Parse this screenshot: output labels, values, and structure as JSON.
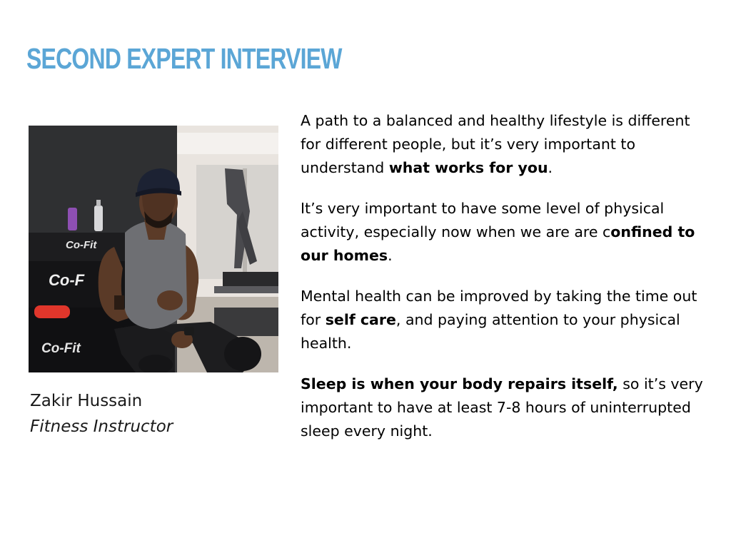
{
  "slide": {
    "title": "SECOND EXPERT INTERVIEW",
    "title_color": "#5ba6d6",
    "photo": {
      "subject": "man in grey tank top and black cap seated in a gym",
      "logo_text": [
        "Co-Fit",
        "Co-F",
        "Co-Fit"
      ]
    },
    "caption": {
      "name": "Zakir Hussain",
      "role": "Fitness Instructor"
    },
    "paragraphs": [
      {
        "pre": "A path to a balanced and healthy lifestyle is different for different people, but it’s very important to understand ",
        "bold": "what works for you",
        "post": "."
      },
      {
        "pre": "It’s very important to have some level of physical activity, especially now when we are are c",
        "bold": "onfined to our homes",
        "post": "."
      },
      {
        "pre": "Mental health can be improved by taking the time out for ",
        "bold": "self care",
        "post": ", and paying attention to your physical health."
      },
      {
        "pre": "",
        "bold": "Sleep is when your body repairs itself,",
        "post": " so it’s very important to have at least 7-8 hours of uninterrupted sleep every night."
      }
    ]
  }
}
